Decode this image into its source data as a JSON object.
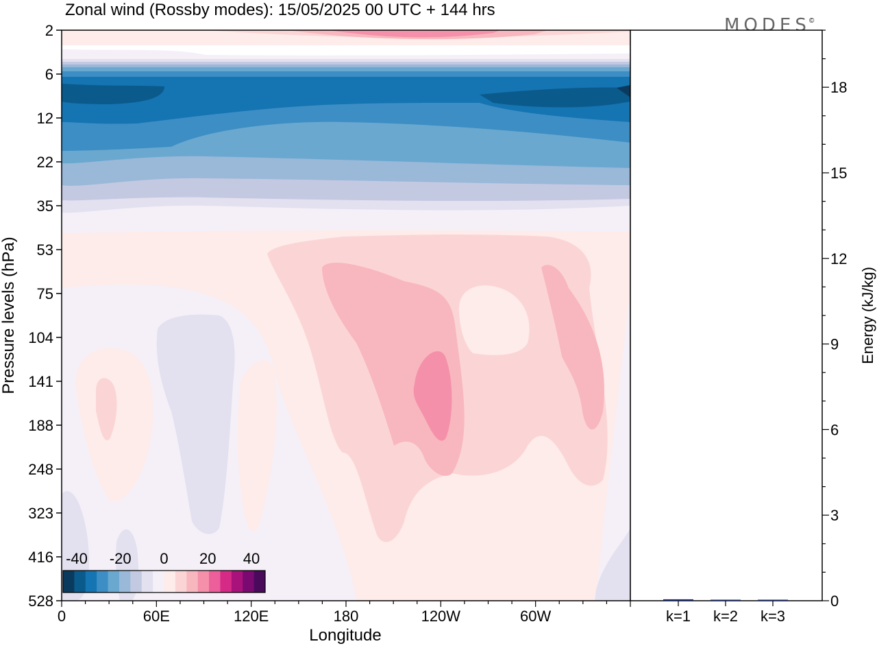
{
  "chart_data": {
    "type": "heatmap",
    "title": "Zonal wind (Rossby modes):  15/05/2025  00 UTC  + 144 hrs",
    "logo": "MODES",
    "logo_mark": "©",
    "xlabel": "Longitude",
    "ylabel": "Pressure levels (hPa)",
    "x_ticks": [
      "0",
      "60E",
      "120E",
      "180",
      "120W",
      "60W"
    ],
    "y_ticks": [
      "2",
      "6",
      "12",
      "22",
      "35",
      "53",
      "75",
      "104",
      "141",
      "188",
      "248",
      "323",
      "416",
      "528"
    ],
    "colorbar": {
      "tick_labels": [
        "-40",
        "-20",
        "0",
        "20",
        "40"
      ],
      "colors": [
        "#0a3b5e",
        "#0b5a8c",
        "#1574b2",
        "#3d8ec4",
        "#6aa8d0",
        "#9ab8d8",
        "#c4c9e2",
        "#e3e1ef",
        "#f5f0f7",
        "#fdecea",
        "#fbd5d5",
        "#f8b7be",
        "#f590aa",
        "#ec5f9a",
        "#d62a87",
        "#a8127a",
        "#7a0a72",
        "#4a0a5c"
      ]
    },
    "energy_panel": {
      "ylabel": "Energy (kJ/kg)",
      "y_ticks": [
        "0",
        "3",
        "6",
        "9",
        "12",
        "15",
        "18"
      ],
      "ylim": [
        0,
        20
      ],
      "categories": [
        "k=1",
        "k=2",
        "k=3"
      ],
      "values": [
        0.05,
        0.02,
        0.02
      ],
      "bar_color": "#1a2a6c"
    }
  }
}
